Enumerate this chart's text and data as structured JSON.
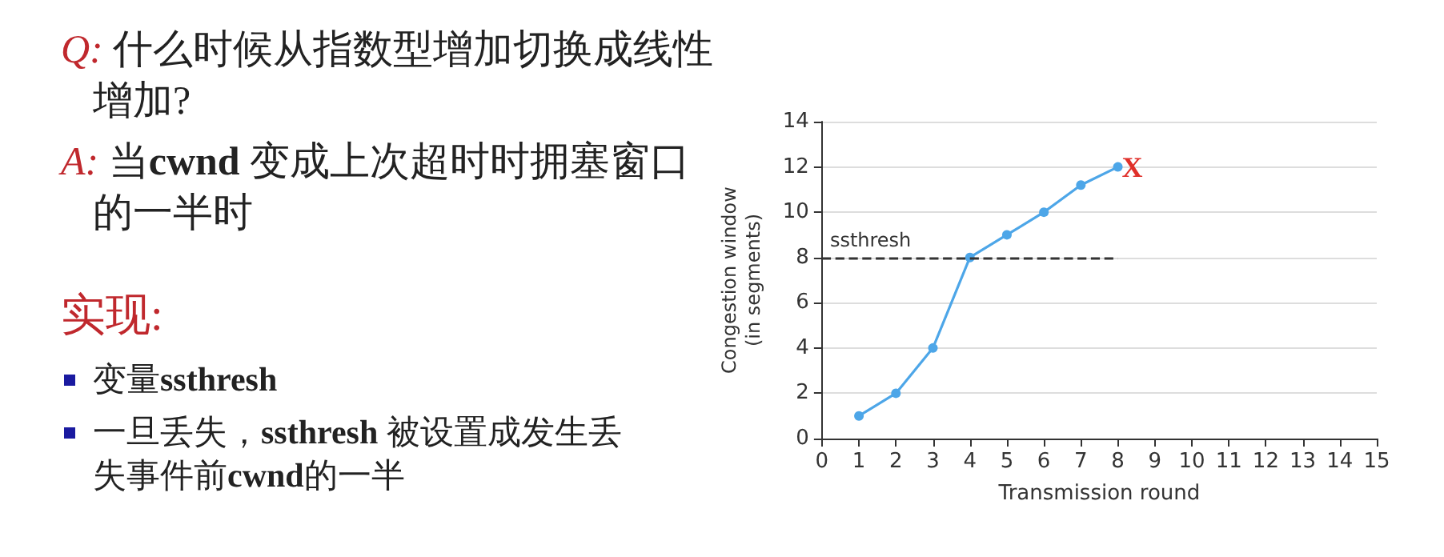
{
  "chart_data": {
    "type": "line",
    "xlabel": "Transmission round",
    "ylabel": "Congestion window\n(in segments)",
    "x": [
      1,
      2,
      3,
      4,
      5,
      6,
      7,
      8
    ],
    "series": [
      {
        "color": "#4da6e8",
        "values": [
          1,
          2,
          4,
          8,
          9,
          10,
          11.2,
          12
        ]
      }
    ],
    "xlim": [
      0,
      15
    ],
    "xticks": [
      0,
      1,
      2,
      3,
      4,
      5,
      6,
      7,
      8,
      9,
      10,
      11,
      12,
      13,
      14,
      15
    ],
    "ylim": [
      0,
      14
    ],
    "yticks": [
      0,
      2,
      4,
      6,
      8,
      10,
      12,
      14
    ],
    "grid": "y",
    "marker": "circle",
    "line_style": "solid",
    "ref_lines": [
      {
        "axis": "y",
        "value": 8,
        "label": "ssthresh",
        "color": "#333333",
        "line_style": "dashed"
      }
    ],
    "annotations": [
      "Q: 什么时候从指数型增加切换成线性增加?",
      "A: 当cwnd 变成上次超时时拥塞窗口的一半时",
      "实现:",
      "变量ssthresh",
      "一旦丢失，ssthresh 被设置成发生丢失事件前cwnd的一半",
      {
        "text": "X",
        "x": 8,
        "y": 12
      }
    ]
  }
}
